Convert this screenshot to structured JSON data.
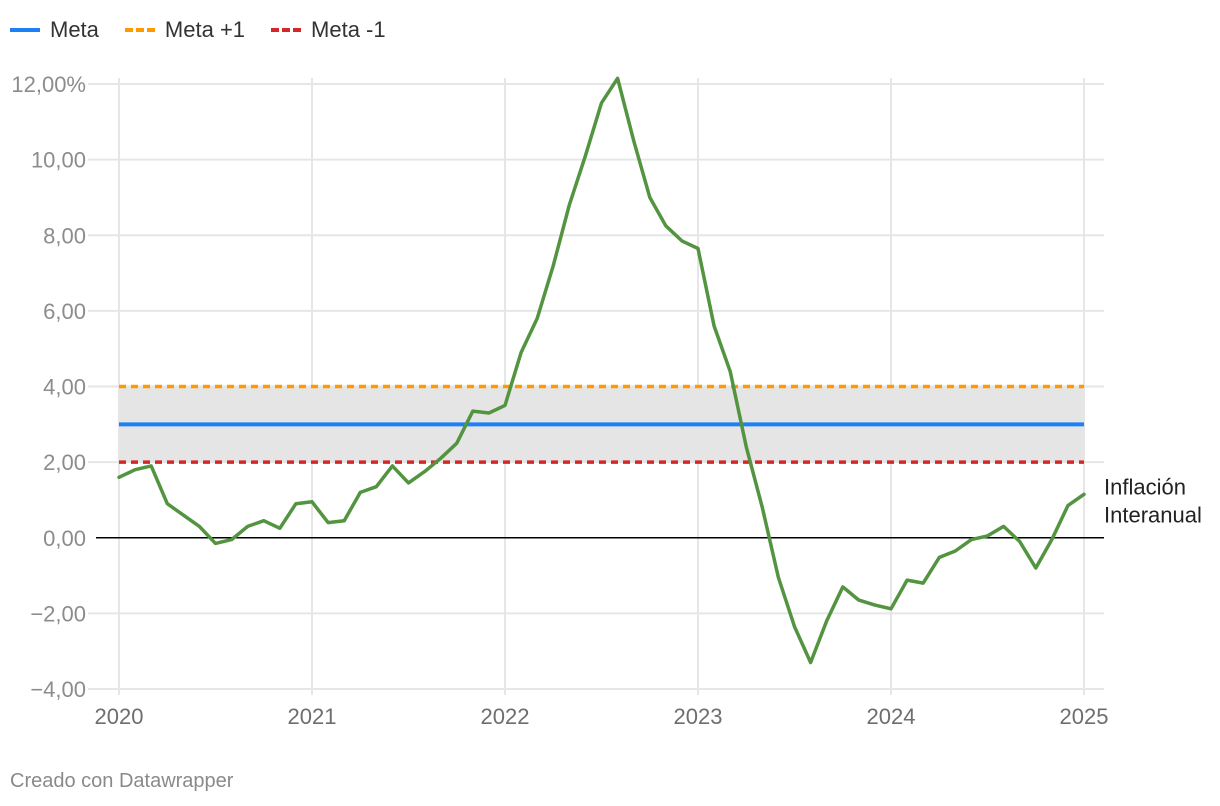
{
  "legend": {
    "items": [
      {
        "label": "Meta"
      },
      {
        "label": "Meta +1"
      },
      {
        "label": "Meta -1"
      }
    ]
  },
  "colors": {
    "meta": "#1d81f5",
    "meta_plus": "#ff9900",
    "meta_minus": "#d62728",
    "inflation": "#539440",
    "band": "#e5e5e5",
    "grid": "#e6e6e6",
    "zero_line": "#000000"
  },
  "chart_data": {
    "type": "line",
    "title": "",
    "xlabel": "",
    "ylabel": "",
    "xlim": [
      2020,
      2025
    ],
    "ylim": [
      -4,
      12
    ],
    "x_ticks": [
      "2020",
      "2021",
      "2022",
      "2023",
      "2024",
      "2025"
    ],
    "y_ticks": [
      "12,00%",
      "10,00",
      "8,00",
      "6,00",
      "4,00",
      "2,00",
      "0,00",
      "−2,00",
      "−4,00"
    ],
    "grid": true,
    "band": {
      "from": 2,
      "to": 4
    },
    "reference_lines": [
      {
        "name": "Meta",
        "value": 3,
        "style": "solid"
      },
      {
        "name": "Meta +1",
        "value": 4,
        "style": "dashed"
      },
      {
        "name": "Meta -1",
        "value": 2,
        "style": "dashed"
      }
    ],
    "series": [
      {
        "name": "Inflación Interanual",
        "x": [
          "2020-01",
          "2020-02",
          "2020-03",
          "2020-04",
          "2020-05",
          "2020-06",
          "2020-07",
          "2020-08",
          "2020-09",
          "2020-10",
          "2020-11",
          "2020-12",
          "2021-01",
          "2021-02",
          "2021-03",
          "2021-04",
          "2021-05",
          "2021-06",
          "2021-07",
          "2021-08",
          "2021-09",
          "2021-10",
          "2021-11",
          "2021-12",
          "2022-01",
          "2022-02",
          "2022-03",
          "2022-04",
          "2022-05",
          "2022-06",
          "2022-07",
          "2022-08",
          "2022-09",
          "2022-10",
          "2022-11",
          "2022-12",
          "2023-01",
          "2023-02",
          "2023-03",
          "2023-04",
          "2023-05",
          "2023-06",
          "2023-07",
          "2023-08",
          "2023-09",
          "2023-10",
          "2023-11",
          "2023-12",
          "2024-01",
          "2024-02",
          "2024-03",
          "2024-04",
          "2024-05",
          "2024-06",
          "2024-07",
          "2024-08",
          "2024-09",
          "2024-10",
          "2024-11",
          "2024-12",
          "2025-01"
        ],
        "values": [
          1.6,
          1.8,
          1.9,
          0.9,
          0.6,
          0.3,
          -0.15,
          -0.05,
          0.3,
          0.45,
          0.25,
          0.9,
          0.95,
          0.4,
          0.45,
          1.2,
          1.35,
          1.9,
          1.45,
          1.75,
          2.1,
          2.5,
          3.35,
          3.3,
          3.5,
          4.9,
          5.8,
          7.2,
          8.8,
          10.1,
          11.5,
          12.15,
          10.5,
          9.0,
          8.25,
          7.85,
          7.65,
          5.6,
          4.4,
          2.4,
          0.8,
          -1.05,
          -2.35,
          -3.3,
          -2.2,
          -1.3,
          -1.65,
          -1.78,
          -1.88,
          -1.12,
          -1.2,
          -0.52,
          -0.35,
          -0.05,
          0.05,
          0.3,
          -0.1,
          -0.8,
          -0.05,
          0.85,
          1.15
        ]
      }
    ],
    "annotations": [
      {
        "text": "Inflación",
        "line": 1
      },
      {
        "text": "Interanual",
        "line": 2
      }
    ]
  },
  "footer": {
    "text": "Creado con Datawrapper"
  }
}
